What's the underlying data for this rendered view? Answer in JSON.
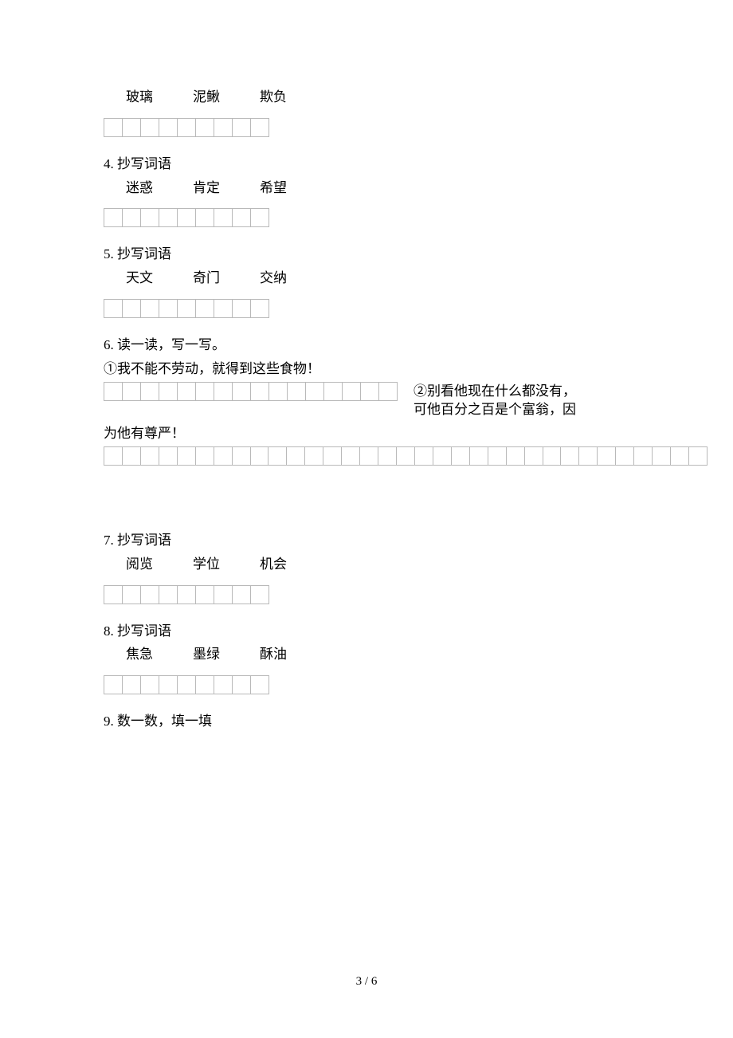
{
  "top_words": {
    "w1": "玻璃",
    "w2": "泥鳅",
    "w3": "欺负"
  },
  "q4": {
    "label": "4. 抄写词语",
    "w1": "迷惑",
    "w2": "肯定",
    "w3": "希望"
  },
  "q5": {
    "label": "5. 抄写词语",
    "w1": "天文",
    "w2": "奇门",
    "w3": "交纳"
  },
  "q6": {
    "label": "6. 读一读，写一写。",
    "line1": "①我不能不劳动，就得到这些食物！",
    "right1": "②别看他现在什么都没有，",
    "right2": "可他百分之百是个富翁，因",
    "line3": "为他有尊严！"
  },
  "q7": {
    "label": "7. 抄写词语",
    "w1": "阅览",
    "w2": "学位",
    "w3": "机会"
  },
  "q8": {
    "label": "8. 抄写词语",
    "w1": "焦急",
    "w2": "墨绿",
    "w3": "酥油"
  },
  "q9": {
    "label": "9. 数一数，填一填"
  },
  "pagenum": "3 / 6",
  "grids": {
    "short_cells": 9,
    "q6_first_cells": 16,
    "q6_wide_cells": 33
  },
  "colors": {
    "cell_border": "#b9b9b9",
    "text": "#000000",
    "bg": "#ffffff"
  }
}
